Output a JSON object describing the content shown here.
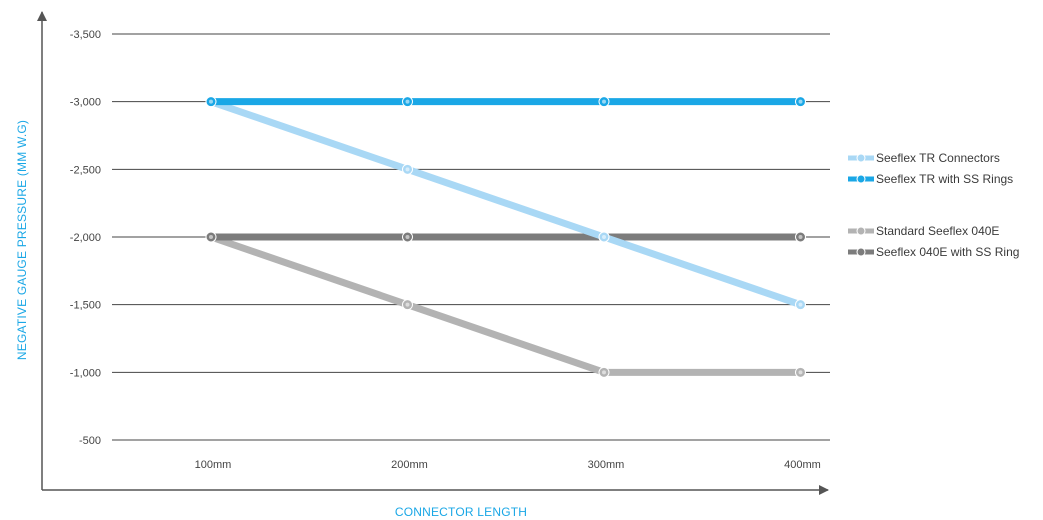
{
  "chart_data": {
    "type": "line",
    "title": "",
    "xlabel": "CONNECTOR LENGTH",
    "ylabel": "NEGATIVE GAUGE PRESSURE (MM W.G)",
    "categories": [
      "100mm",
      "200mm",
      "300mm",
      "400mm"
    ],
    "yticks": [
      -500,
      -1000,
      -1500,
      -2000,
      -2500,
      -3000,
      -3500
    ],
    "ytick_labels": [
      "-500",
      "-1,000",
      "-1,500",
      "-2,000",
      "-2,500",
      "-3,000",
      "-3,500"
    ],
    "ylim": [
      -500,
      -3500
    ],
    "y_axis_direction": "more negative values plotted higher",
    "grid": "horizontal",
    "legend_position": "right",
    "series": [
      {
        "name": "Seeflex TR Connectors",
        "color": "#a9d8f5",
        "values": [
          -3000,
          -2500,
          -2000,
          -1500
        ]
      },
      {
        "name": "Seeflex TR with SS Rings",
        "color": "#1aa7e6",
        "values": [
          -3000,
          -3000,
          -3000,
          -3000
        ]
      },
      {
        "name": "Standard Seeflex 040E",
        "color": "#b3b3b3",
        "values": [
          -2000,
          -1500,
          -1000,
          -1000
        ]
      },
      {
        "name": "Seeflex 040E with SS Ring",
        "color": "#7c7c7c",
        "values": [
          -2000,
          -2000,
          -2000,
          -2000
        ]
      }
    ],
    "draw_order": [
      2,
      3,
      0,
      1
    ],
    "legend_groups": [
      [
        0,
        1
      ],
      [
        2,
        3
      ]
    ],
    "axis_title_color": "#1aa7e6",
    "axis_color": "#555555",
    "grid_color": "#444444"
  }
}
